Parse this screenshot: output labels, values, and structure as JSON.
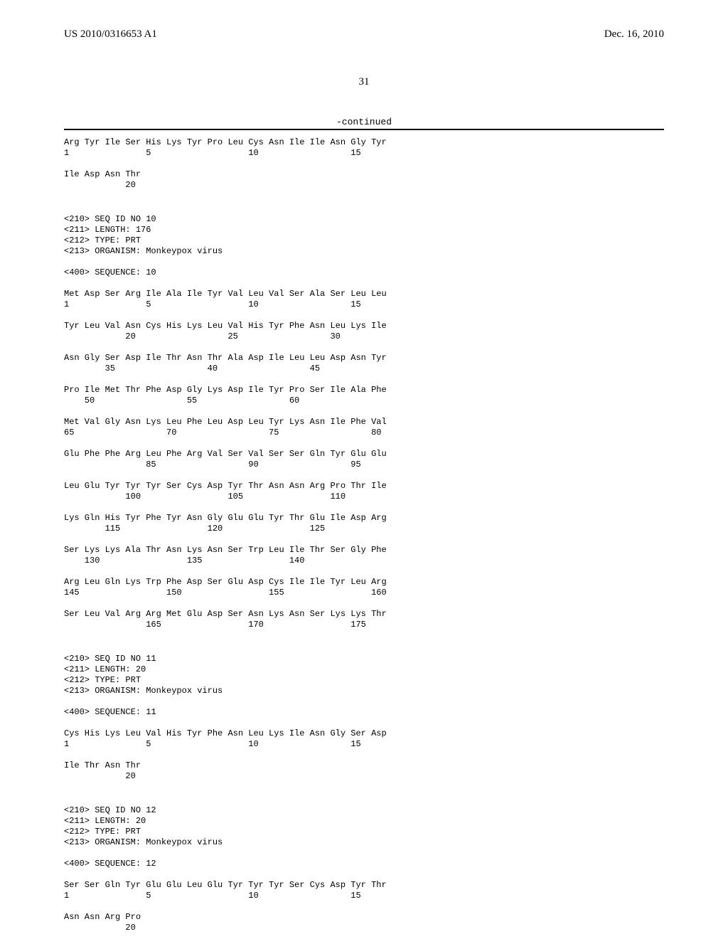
{
  "header": {
    "docNumber": "US 2010/0316653 A1",
    "date": "Dec. 16, 2010"
  },
  "pageNumber": "31",
  "continued": "-continued",
  "sequences": [
    {
      "lines": [
        "Arg Tyr Ile Ser His Lys Tyr Pro Leu Cys Asn Ile Ile Asn Gly Tyr",
        "1               5                   10                  15",
        "",
        "Ile Asp Asn Thr",
        "            20"
      ]
    },
    {
      "meta": [
        "<210> SEQ ID NO 10",
        "<211> LENGTH: 176",
        "<212> TYPE: PRT",
        "<213> ORGANISM: Monkeypox virus"
      ],
      "sequence_label": "<400> SEQUENCE: 10",
      "lines": [
        "Met Asp Ser Arg Ile Ala Ile Tyr Val Leu Val Ser Ala Ser Leu Leu",
        "1               5                   10                  15",
        "",
        "Tyr Leu Val Asn Cys His Lys Leu Val His Tyr Phe Asn Leu Lys Ile",
        "            20                  25                  30",
        "",
        "Asn Gly Ser Asp Ile Thr Asn Thr Ala Asp Ile Leu Leu Asp Asn Tyr",
        "        35                  40                  45",
        "",
        "Pro Ile Met Thr Phe Asp Gly Lys Asp Ile Tyr Pro Ser Ile Ala Phe",
        "    50                  55                  60",
        "",
        "Met Val Gly Asn Lys Leu Phe Leu Asp Leu Tyr Lys Asn Ile Phe Val",
        "65                  70                  75                  80",
        "",
        "Glu Phe Phe Arg Leu Phe Arg Val Ser Val Ser Ser Gln Tyr Glu Glu",
        "                85                  90                  95",
        "",
        "Leu Glu Tyr Tyr Tyr Ser Cys Asp Tyr Thr Asn Asn Arg Pro Thr Ile",
        "            100                 105                 110",
        "",
        "Lys Gln His Tyr Phe Tyr Asn Gly Glu Glu Tyr Thr Glu Ile Asp Arg",
        "        115                 120                 125",
        "",
        "Ser Lys Lys Ala Thr Asn Lys Asn Ser Trp Leu Ile Thr Ser Gly Phe",
        "    130                 135                 140",
        "",
        "Arg Leu Gln Lys Trp Phe Asp Ser Glu Asp Cys Ile Ile Tyr Leu Arg",
        "145                 150                 155                 160",
        "",
        "Ser Leu Val Arg Arg Met Glu Asp Ser Asn Lys Asn Ser Lys Lys Thr",
        "                165                 170                 175"
      ]
    },
    {
      "meta": [
        "<210> SEQ ID NO 11",
        "<211> LENGTH: 20",
        "<212> TYPE: PRT",
        "<213> ORGANISM: Monkeypox virus"
      ],
      "sequence_label": "<400> SEQUENCE: 11",
      "lines": [
        "Cys His Lys Leu Val His Tyr Phe Asn Leu Lys Ile Asn Gly Ser Asp",
        "1               5                   10                  15",
        "",
        "Ile Thr Asn Thr",
        "            20"
      ]
    },
    {
      "meta": [
        "<210> SEQ ID NO 12",
        "<211> LENGTH: 20",
        "<212> TYPE: PRT",
        "<213> ORGANISM: Monkeypox virus"
      ],
      "sequence_label": "<400> SEQUENCE: 12",
      "lines": [
        "Ser Ser Gln Tyr Glu Glu Leu Glu Tyr Tyr Tyr Ser Cys Asp Tyr Thr",
        "1               5                   10                  15",
        "",
        "Asn Asn Arg Pro",
        "            20"
      ]
    }
  ]
}
